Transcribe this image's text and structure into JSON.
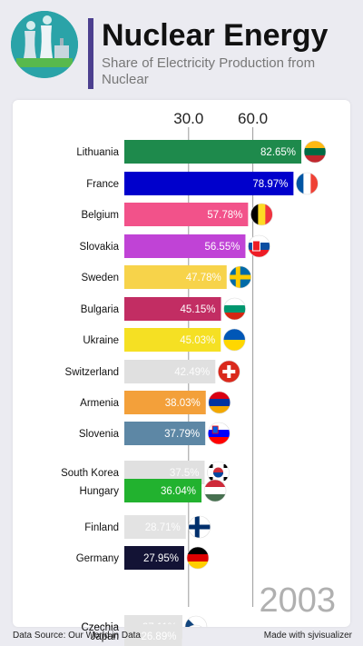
{
  "header": {
    "title": "Nuclear Energy",
    "subtitle": "Share of Electricity Production from Nuclear",
    "logo_icon": "nuclear-plant-icon"
  },
  "year_label": "2003",
  "footer": {
    "source": "Data Source: Our World in Data",
    "credit": "Made with sjvisualizer"
  },
  "chart_data": {
    "type": "bar",
    "orientation": "horizontal",
    "title": "Nuclear Energy",
    "subtitle": "Share of Electricity Production from Nuclear",
    "value_format": "percent",
    "x_ticks": [
      "30.0",
      "60.0"
    ],
    "xlim": [
      0,
      90
    ],
    "grid": true,
    "categories": [
      "Lithuania",
      "France",
      "Belgium",
      "Slovakia",
      "Sweden",
      "Bulgaria",
      "Ukraine",
      "Switzerland",
      "Armenia",
      "Slovenia",
      "South Korea",
      "Hungary",
      "Finland",
      "Germany",
      "Czechia",
      "Japan"
    ],
    "values": [
      82.65,
      78.97,
      57.78,
      56.55,
      47.78,
      45.15,
      45.03,
      42.49,
      38.03,
      37.79,
      37.5,
      36.04,
      28.71,
      27.95,
      27.11,
      26.89
    ],
    "value_labels": [
      "82.65%",
      "78.97%",
      "57.78%",
      "56.55%",
      "47.78%",
      "45.15%",
      "45.03%",
      "42.49%",
      "38.03%",
      "37.79%",
      "37.5%",
      "36.04%",
      "28.71%",
      "27.95%",
      "27.11%",
      "26.89%"
    ],
    "colors": [
      "#1e8a4c",
      "#0000cc",
      "#f2528a",
      "#c043d6",
      "#f7d34a",
      "#c22d63",
      "#f5e023",
      "#e0e0e0",
      "#f3a03a",
      "#5d87a5",
      "#e0e0e0",
      "#22b22f",
      "#e3e3e3",
      "#131335",
      "#e3e3e3",
      "#e3e3e3"
    ],
    "flags": [
      "lithuania-flag-icon",
      "france-flag-icon",
      "belgium-flag-icon",
      "slovakia-flag-icon",
      "sweden-flag-icon",
      "bulgaria-flag-icon",
      "ukraine-flag-icon",
      "switzerland-flag-icon",
      "armenia-flag-icon",
      "slovenia-flag-icon",
      "south-korea-flag-icon",
      "hungary-flag-icon",
      "finland-flag-icon",
      "germany-flag-icon",
      "czechia-flag-icon",
      "japan-flag-icon"
    ]
  }
}
